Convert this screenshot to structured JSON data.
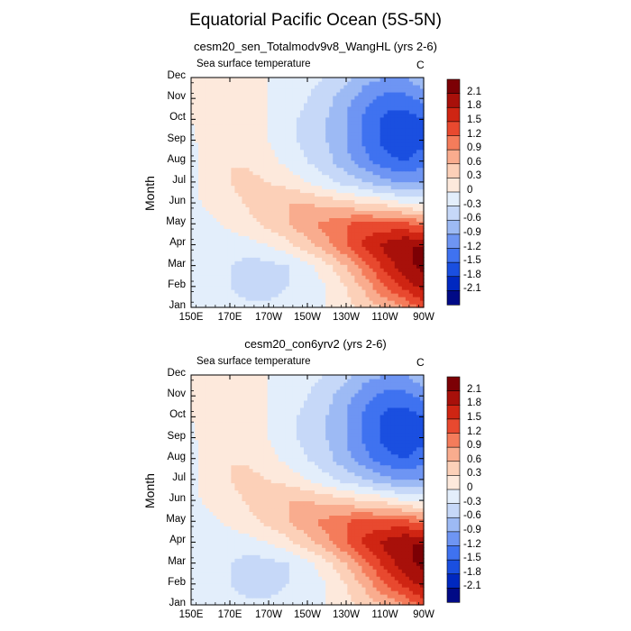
{
  "title": "Equatorial Pacific Ocean (5S-5N)",
  "chart_data": [
    {
      "type": "heatmap",
      "title": "cesm20_sen_Totalmodv9v8_WangHL (yrs 2-6)",
      "subtitle": "Sea surface temperature",
      "units": "C",
      "ylabel": "Month",
      "x_ticks": [
        "150E",
        "170E",
        "170W",
        "150W",
        "130W",
        "110W",
        "90W"
      ],
      "y_ticks": [
        "Jan",
        "Feb",
        "Mar",
        "Apr",
        "May",
        "Jun",
        "Jul",
        "Aug",
        "Sep",
        "Oct",
        "Nov",
        "Dec"
      ],
      "x_lon": [
        150,
        160,
        170,
        180,
        190,
        200,
        210,
        220,
        230,
        240,
        250,
        260,
        270
      ],
      "values": [
        [
          0.0,
          -0.15,
          -0.2,
          -0.2,
          -0.2,
          -0.15,
          -0.1,
          0.0,
          0.2,
          0.4,
          0.6,
          0.9,
          1.3
        ],
        [
          -0.05,
          -0.15,
          -0.3,
          -0.45,
          -0.45,
          -0.3,
          -0.15,
          0.0,
          0.3,
          0.7,
          1.2,
          1.6,
          1.9
        ],
        [
          -0.05,
          -0.15,
          -0.3,
          -0.45,
          -0.4,
          -0.3,
          -0.1,
          0.2,
          0.6,
          1.1,
          1.6,
          2.0,
          2.2
        ],
        [
          -0.05,
          -0.1,
          -0.15,
          -0.1,
          0.0,
          0.2,
          0.5,
          0.8,
          1.2,
          1.6,
          1.9,
          2.1,
          2.1
        ],
        [
          -0.05,
          -0.05,
          0.05,
          0.2,
          0.4,
          0.6,
          0.8,
          1.0,
          1.2,
          1.3,
          1.3,
          1.3,
          1.1
        ],
        [
          -0.05,
          0.05,
          0.2,
          0.35,
          0.55,
          0.6,
          0.6,
          0.5,
          0.4,
          0.3,
          0.2,
          0.0,
          -0.1
        ],
        [
          -0.05,
          0.1,
          0.3,
          0.4,
          0.3,
          0.2,
          0.0,
          -0.2,
          -0.4,
          -0.6,
          -0.8,
          -0.9,
          -0.9
        ],
        [
          -0.1,
          0.15,
          0.3,
          0.25,
          0.1,
          -0.1,
          -0.3,
          -0.5,
          -0.8,
          -1.1,
          -1.4,
          -1.5,
          -1.3
        ],
        [
          -0.05,
          0.15,
          0.25,
          0.2,
          0.0,
          -0.2,
          -0.4,
          -0.6,
          -0.9,
          -1.3,
          -1.6,
          -1.8,
          -1.6
        ],
        [
          0.0,
          0.15,
          0.2,
          0.15,
          0.0,
          -0.2,
          -0.4,
          -0.6,
          -0.9,
          -1.3,
          -1.6,
          -1.7,
          -1.5
        ],
        [
          0.0,
          0.15,
          0.15,
          0.1,
          0.0,
          -0.1,
          -0.3,
          -0.5,
          -0.8,
          -1.1,
          -1.3,
          -1.3,
          -1.1
        ],
        [
          0.05,
          0.2,
          0.15,
          0.1,
          0.0,
          -0.05,
          -0.2,
          -0.3,
          -0.5,
          -0.8,
          -0.9,
          -0.9,
          -0.7
        ]
      ],
      "colorbar_levels": [
        "2.1",
        "1.8",
        "1.5",
        "1.2",
        "0.9",
        "0.6",
        "0.3",
        "0",
        "-0.3",
        "-0.6",
        "-0.9",
        "-1.2",
        "-1.5",
        "-1.8",
        "-2.1"
      ]
    },
    {
      "type": "heatmap",
      "title": "cesm20_con6yrv2 (yrs 2-6)",
      "subtitle": "Sea surface temperature",
      "units": "C",
      "ylabel": "Month",
      "x_ticks": [
        "150E",
        "170E",
        "170W",
        "150W",
        "130W",
        "110W",
        "90W"
      ],
      "y_ticks": [
        "Jan",
        "Feb",
        "Mar",
        "Apr",
        "May",
        "Jun",
        "Jul",
        "Aug",
        "Sep",
        "Oct",
        "Nov",
        "Dec"
      ],
      "x_lon": [
        150,
        160,
        170,
        180,
        190,
        200,
        210,
        220,
        230,
        240,
        250,
        260,
        270
      ],
      "values": [
        [
          0.0,
          -0.15,
          -0.2,
          -0.2,
          -0.2,
          -0.15,
          -0.1,
          0.0,
          0.2,
          0.4,
          0.6,
          0.9,
          1.3
        ],
        [
          -0.05,
          -0.15,
          -0.3,
          -0.45,
          -0.45,
          -0.3,
          -0.15,
          0.0,
          0.3,
          0.7,
          1.2,
          1.6,
          1.9
        ],
        [
          -0.05,
          -0.15,
          -0.3,
          -0.45,
          -0.4,
          -0.3,
          -0.1,
          0.2,
          0.6,
          1.1,
          1.6,
          2.0,
          2.2
        ],
        [
          -0.05,
          -0.1,
          -0.15,
          -0.1,
          0.0,
          0.2,
          0.5,
          0.8,
          1.2,
          1.6,
          1.9,
          2.1,
          2.1
        ],
        [
          -0.05,
          -0.05,
          0.05,
          0.2,
          0.4,
          0.6,
          0.8,
          1.0,
          1.2,
          1.3,
          1.3,
          1.3,
          1.1
        ],
        [
          -0.05,
          0.05,
          0.2,
          0.35,
          0.55,
          0.6,
          0.6,
          0.5,
          0.4,
          0.3,
          0.2,
          0.0,
          -0.1
        ],
        [
          -0.05,
          0.1,
          0.3,
          0.4,
          0.3,
          0.2,
          0.0,
          -0.2,
          -0.4,
          -0.6,
          -0.8,
          -0.9,
          -0.9
        ],
        [
          -0.1,
          0.15,
          0.3,
          0.25,
          0.1,
          -0.1,
          -0.3,
          -0.5,
          -0.8,
          -1.1,
          -1.4,
          -1.5,
          -1.3
        ],
        [
          -0.05,
          0.15,
          0.25,
          0.2,
          0.0,
          -0.2,
          -0.4,
          -0.6,
          -0.9,
          -1.3,
          -1.6,
          -1.8,
          -1.6
        ],
        [
          0.0,
          0.15,
          0.2,
          0.15,
          0.0,
          -0.2,
          -0.4,
          -0.6,
          -0.9,
          -1.3,
          -1.6,
          -1.7,
          -1.5
        ],
        [
          0.0,
          0.15,
          0.15,
          0.1,
          0.0,
          -0.1,
          -0.3,
          -0.5,
          -0.8,
          -1.1,
          -1.3,
          -1.3,
          -1.1
        ],
        [
          0.05,
          0.2,
          0.15,
          0.1,
          0.0,
          -0.05,
          -0.2,
          -0.3,
          -0.5,
          -0.8,
          -0.9,
          -0.9,
          -0.7
        ]
      ],
      "colorbar_levels": [
        "2.1",
        "1.8",
        "1.5",
        "1.2",
        "0.9",
        "0.6",
        "0.3",
        "0",
        "-0.3",
        "-0.6",
        "-0.9",
        "-1.2",
        "-1.5",
        "-1.8",
        "-2.1"
      ]
    }
  ],
  "colors": {
    "palette": [
      "#000a86",
      "#0028c0",
      "#1a4fe0",
      "#3f72f0",
      "#6e95f3",
      "#9dbaf4",
      "#c6d8f8",
      "#e3eefb",
      "#fde9dc",
      "#fcd0b8",
      "#f9ac8e",
      "#f47c5b",
      "#e8492f",
      "#cf2513",
      "#a8100a",
      "#7c0005"
    ]
  }
}
